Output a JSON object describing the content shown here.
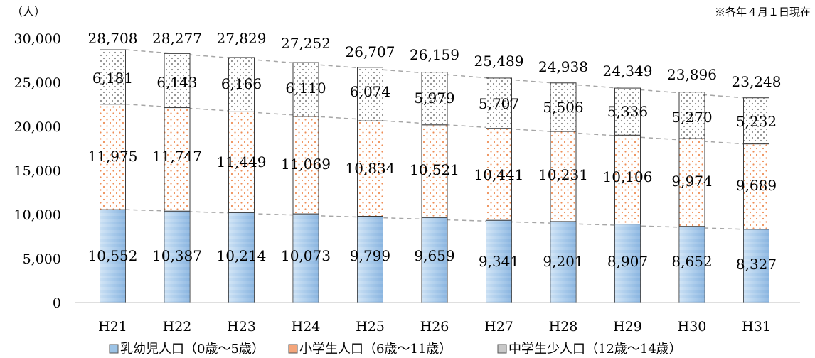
{
  "chart_data": {
    "type": "bar",
    "stacked": true,
    "unit_label": "（人）",
    "note": "※各年４月１日現在",
    "categories": [
      "H21",
      "H22",
      "H23",
      "H24",
      "H25",
      "H26",
      "H27",
      "H28",
      "H29",
      "H30",
      "H31"
    ],
    "series": [
      {
        "name": "乳幼児人口（0歳～5歳）",
        "color": "#9cc3e6",
        "values": [
          10552,
          10387,
          10214,
          10073,
          9799,
          9659,
          9341,
          9201,
          8907,
          8652,
          8327
        ],
        "labels": [
          "10,552",
          "10,387",
          "10,214",
          "10,073",
          "9,799",
          "9,659",
          "9,341",
          "9,201",
          "8,907",
          "8,652",
          "8,327"
        ]
      },
      {
        "name": "小学生人口（6歳～11歳）",
        "color": "#f4a57a",
        "values": [
          11975,
          11747,
          11449,
          11069,
          10834,
          10521,
          10441,
          10231,
          10106,
          9974,
          9689
        ],
        "labels": [
          "11,975",
          "11,747",
          "11,449",
          "11,069",
          "10,834",
          "10,521",
          "10,441",
          "10,231",
          "10,106",
          "9,974",
          "9,689"
        ]
      },
      {
        "name": "中学生少人口（12歳～14歳）",
        "color": "#c8c8c8",
        "values": [
          6181,
          6143,
          6166,
          6110,
          6074,
          5979,
          5707,
          5506,
          5336,
          5270,
          5232
        ],
        "labels": [
          "6,181",
          "6,143",
          "6,166",
          "6,110",
          "6,074",
          "5,979",
          "5,707",
          "5,506",
          "5,336",
          "5,270",
          "5,232"
        ]
      }
    ],
    "totals": [
      28708,
      28277,
      27829,
      27252,
      26707,
      26159,
      25489,
      24938,
      24349,
      23896,
      23248
    ],
    "total_labels": [
      "28,708",
      "28,277",
      "27,829",
      "27,252",
      "26,707",
      "26,159",
      "25,489",
      "24,938",
      "24,349",
      "23,896",
      "23,248"
    ],
    "ylim": [
      0,
      30000
    ],
    "yticks": [
      0,
      5000,
      10000,
      15000,
      20000,
      25000,
      30000
    ],
    "ytick_labels": [
      "0",
      "5,000",
      "10,000",
      "15,000",
      "20,000",
      "25,000",
      "30,000"
    ],
    "grid": false,
    "trend_lines": true,
    "legend_position": "bottom"
  }
}
